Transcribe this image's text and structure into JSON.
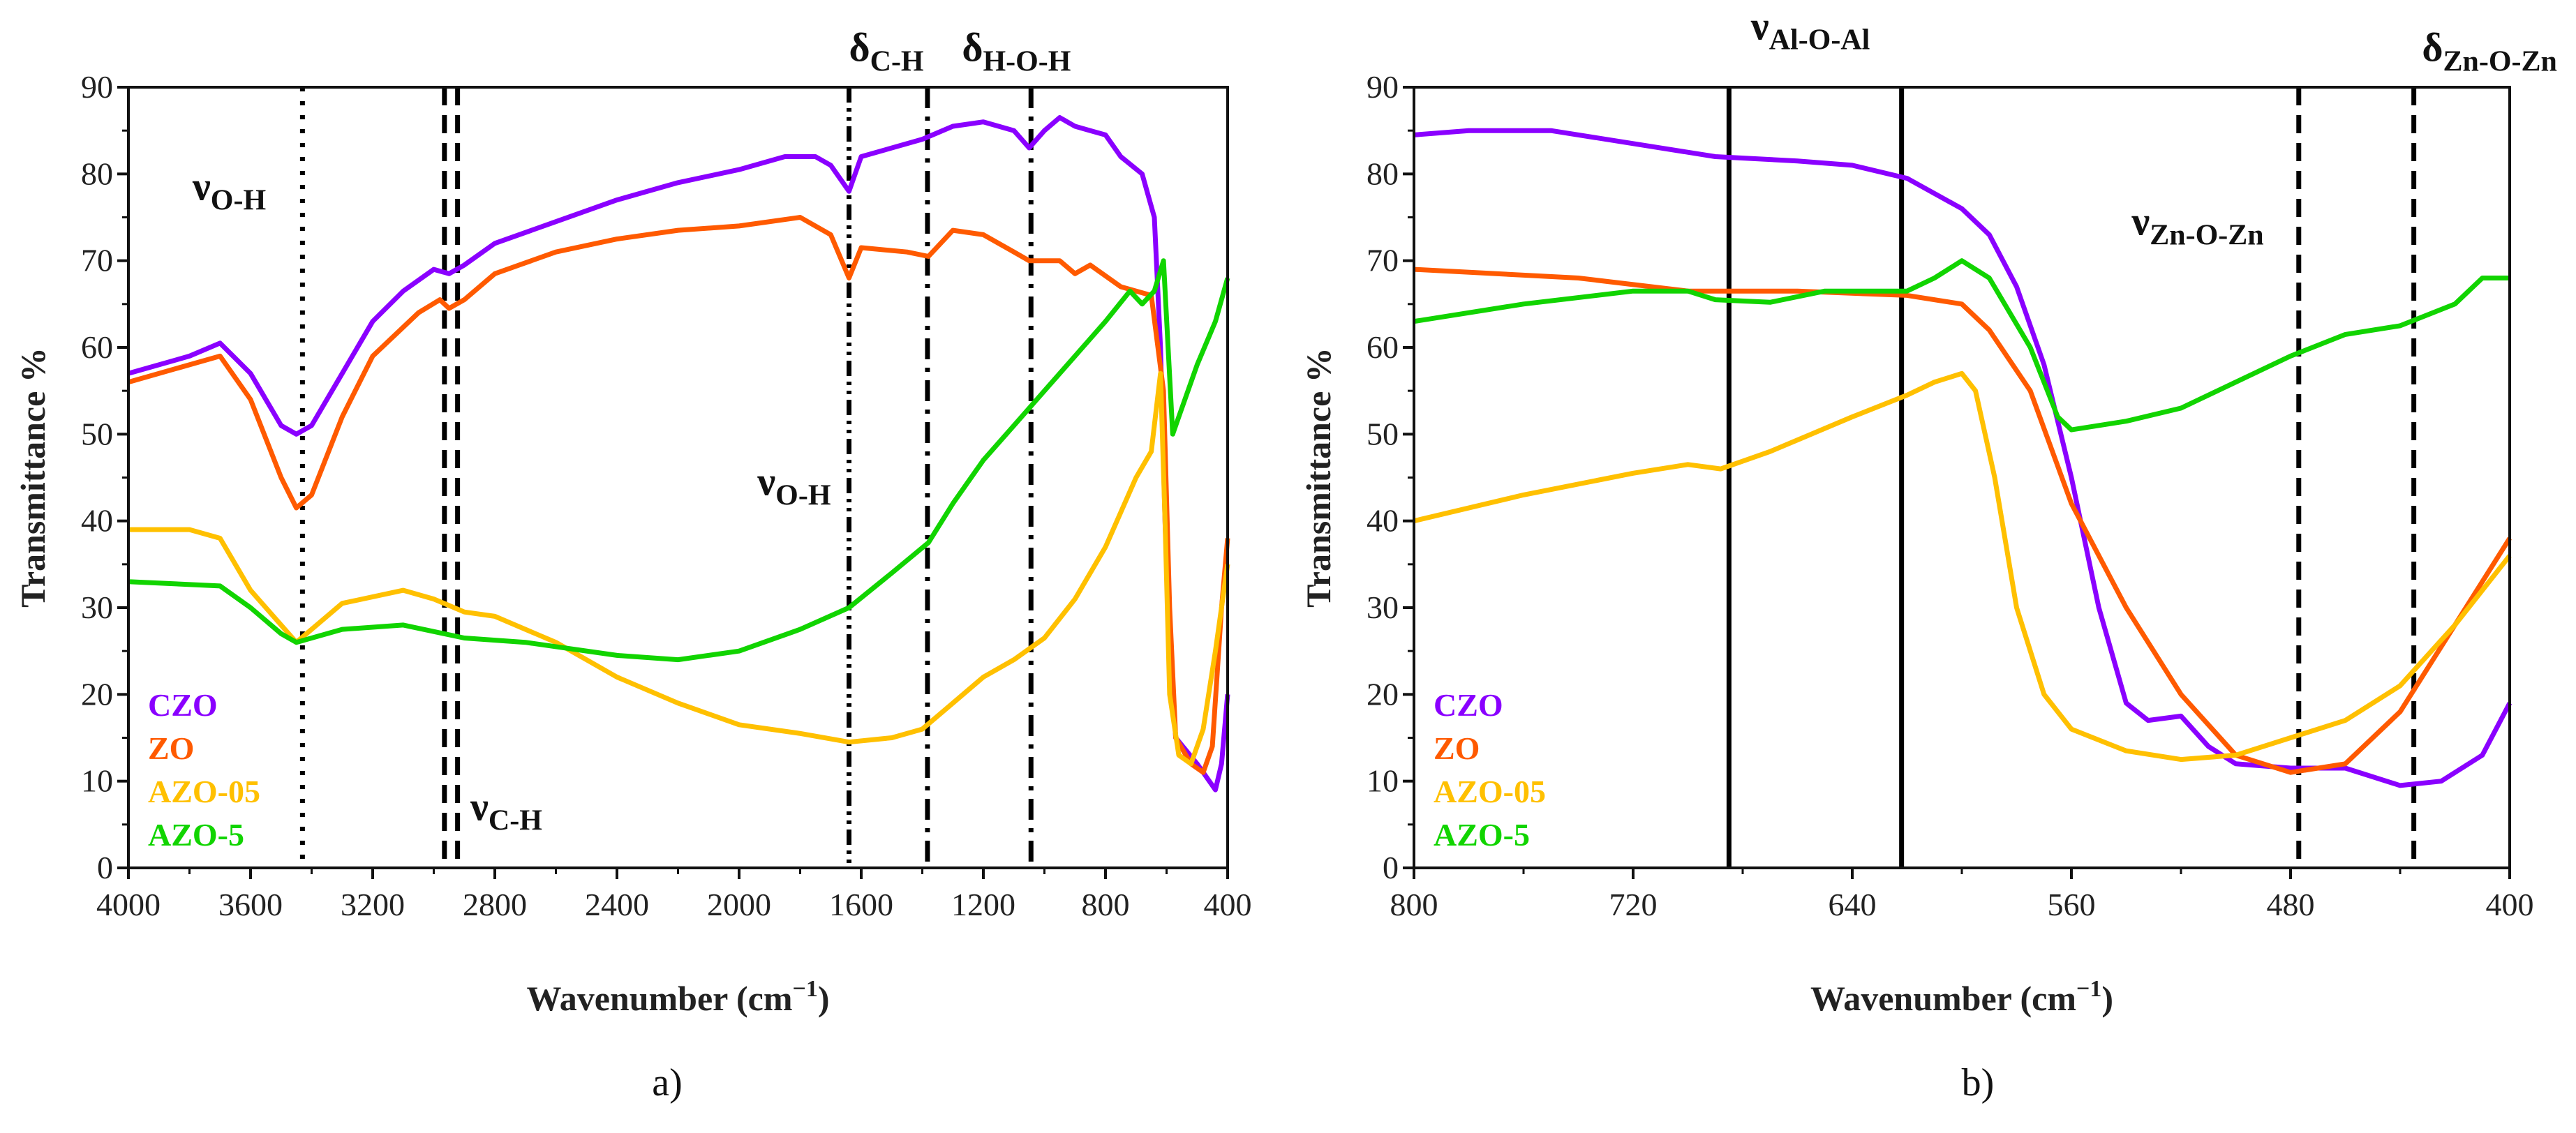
{
  "colors": {
    "CZO": "#8a00ff",
    "ZO": "#ff5a00",
    "AZO-05": "#ffc000",
    "AZO-5": "#11d400"
  },
  "chart_data": [
    {
      "type": "line",
      "panel_label": "a)",
      "xlabel": "Wavenumber (cm",
      "xlabel_sup": "−1",
      "xlabel_end": ")",
      "ylabel": "Transmittance %",
      "xlim": [
        4000,
        400
      ],
      "ylim": [
        0,
        90
      ],
      "xticks": [
        4000,
        3600,
        3200,
        2800,
        2400,
        2000,
        1600,
        1200,
        800,
        400
      ],
      "yticks": [
        0,
        10,
        20,
        30,
        40,
        50,
        60,
        70,
        80,
        90
      ],
      "legend": {
        "placement": "bottom-left",
        "entries": [
          "CZO",
          "ZO",
          "AZO-05",
          "AZO-5"
        ]
      },
      "vlines": [
        {
          "x": 3430,
          "style": "dotted"
        },
        {
          "x": 2965,
          "style": "dashed"
        },
        {
          "x": 2922,
          "style": "dashed"
        },
        {
          "x": 1640,
          "style": "dashdotdot"
        },
        {
          "x": 1383,
          "style": "dashdot"
        },
        {
          "x": 1044,
          "style": "dashdot"
        }
      ],
      "annotations": [
        {
          "symbol": "ν",
          "sub": "O-H",
          "x": 3790,
          "y": 77
        },
        {
          "symbol": "ν",
          "sub": "C-H",
          "x": 2880,
          "y": 5.5
        },
        {
          "symbol": "ν",
          "sub": "O-H",
          "x": 1940,
          "y": 43
        },
        {
          "symbol": "δ",
          "sub": "C-H",
          "x": 1640,
          "y": 93
        },
        {
          "symbol": "δ",
          "sub": "H-O-H",
          "x": 1270,
          "y": 93
        }
      ],
      "series": [
        {
          "name": "CZO",
          "x": [
            4000,
            3800,
            3700,
            3600,
            3500,
            3450,
            3400,
            3300,
            3200,
            3100,
            3000,
            2950,
            2900,
            2800,
            2600,
            2400,
            2200,
            2000,
            1850,
            1750,
            1700,
            1640,
            1600,
            1400,
            1300,
            1200,
            1100,
            1050,
            1000,
            950,
            900,
            850,
            800,
            750,
            680,
            640,
            620,
            605,
            590,
            570,
            500,
            440,
            420,
            400
          ],
          "y": [
            57,
            59,
            60.5,
            57,
            51,
            50,
            51,
            57,
            63,
            66.5,
            69,
            68.5,
            69.5,
            72,
            74.5,
            77,
            79,
            80.5,
            82,
            82,
            81,
            78,
            82,
            84,
            85.5,
            86,
            85,
            83,
            85,
            86.5,
            85.5,
            85,
            84.5,
            82,
            80,
            75,
            60,
            40,
            25,
            15,
            12,
            9,
            12,
            20
          ]
        },
        {
          "name": "ZO",
          "x": [
            4000,
            3700,
            3600,
            3500,
            3450,
            3400,
            3300,
            3200,
            3050,
            2980,
            2950,
            2900,
            2800,
            2600,
            2400,
            2200,
            2000,
            1800,
            1700,
            1640,
            1600,
            1450,
            1380,
            1300,
            1200,
            1100,
            1050,
            950,
            900,
            850,
            750,
            650,
            610,
            590,
            570,
            520,
            480,
            450,
            420,
            400
          ],
          "y": [
            56,
            59,
            54,
            45,
            41.5,
            43,
            52,
            59,
            64,
            65.5,
            64.5,
            65.5,
            68.5,
            71,
            72.5,
            73.5,
            74,
            75,
            73,
            68,
            71.5,
            71,
            70.5,
            73.5,
            73,
            71,
            70,
            70,
            68.5,
            69.5,
            67,
            66,
            55,
            30,
            15,
            12,
            11,
            14,
            30,
            38
          ]
        },
        {
          "name": "AZO-05",
          "x": [
            4000,
            3800,
            3700,
            3600,
            3500,
            3450,
            3400,
            3300,
            3100,
            3000,
            2900,
            2800,
            2600,
            2400,
            2200,
            2000,
            1800,
            1640,
            1500,
            1400,
            1300,
            1200,
            1100,
            1000,
            900,
            800,
            700,
            650,
            620,
            605,
            590,
            560,
            520,
            480,
            440,
            400
          ],
          "y": [
            39,
            39,
            38,
            32,
            28,
            26,
            27.5,
            30.5,
            32,
            31,
            29.5,
            29,
            26,
            22,
            19,
            16.5,
            15.5,
            14.5,
            15,
            16,
            19,
            22,
            24,
            26.5,
            31,
            37,
            45,
            48,
            57,
            40,
            20,
            13,
            12,
            16,
            25,
            35
          ]
        },
        {
          "name": "AZO-5",
          "x": [
            4000,
            3700,
            3600,
            3500,
            3450,
            3300,
            3100,
            2900,
            2700,
            2400,
            2200,
            2000,
            1800,
            1640,
            1500,
            1380,
            1300,
            1200,
            1100,
            1000,
            900,
            800,
            720,
            680,
            640,
            610,
            595,
            580,
            560,
            500,
            440,
            400
          ],
          "y": [
            33,
            32.5,
            30,
            27,
            26,
            27.5,
            28,
            26.5,
            26,
            24.5,
            24,
            25,
            27.5,
            30,
            34,
            37.5,
            42,
            47,
            51,
            55,
            59,
            63,
            66.5,
            65,
            66.5,
            70,
            60,
            50,
            52,
            58,
            63,
            68
          ]
        }
      ]
    },
    {
      "type": "line",
      "panel_label": "b)",
      "xlabel": "Wavenumber (cm",
      "xlabel_sup": "−1",
      "xlabel_end": ")",
      "ylabel": "Transmittance %",
      "xlim": [
        800,
        400
      ],
      "ylim": [
        0,
        90
      ],
      "xticks": [
        800,
        720,
        640,
        560,
        480,
        400
      ],
      "yticks": [
        0,
        10,
        20,
        30,
        40,
        50,
        60,
        70,
        80,
        90
      ],
      "legend": {
        "placement": "bottom-left",
        "entries": [
          "CZO",
          "ZO",
          "AZO-05",
          "AZO-5"
        ]
      },
      "vlines": [
        {
          "x": 685,
          "style": "solid"
        },
        {
          "x": 622,
          "style": "solid"
        },
        {
          "x": 477,
          "style": "dashed"
        },
        {
          "x": 435,
          "style": "dashed"
        }
      ],
      "annotations": [
        {
          "symbol": "ν",
          "sub": "Al-O-Al",
          "x": 677,
          "y": 95.5
        },
        {
          "symbol": "ν",
          "sub": "Zn-O-Zn",
          "x": 538,
          "y": 73
        },
        {
          "symbol": "δ",
          "sub": "Zn-O-Zn",
          "x": 432,
          "y": 93
        }
      ],
      "series": [
        {
          "name": "CZO",
          "x": [
            800,
            780,
            750,
            720,
            690,
            660,
            640,
            620,
            600,
            590,
            580,
            570,
            560,
            550,
            540,
            532,
            520,
            510,
            500,
            480,
            460,
            440,
            425,
            410,
            400
          ],
          "y": [
            84.5,
            85,
            85,
            83.5,
            82,
            81.5,
            81,
            79.5,
            76,
            73,
            67,
            58,
            45,
            30,
            19,
            17,
            17.5,
            14,
            12,
            11.5,
            11.5,
            9.5,
            10,
            13,
            19
          ]
        },
        {
          "name": "ZO",
          "x": [
            800,
            740,
            700,
            660,
            620,
            600,
            590,
            575,
            560,
            540,
            520,
            500,
            480,
            460,
            440,
            420,
            400
          ],
          "y": [
            69,
            68,
            66.5,
            66.5,
            66,
            65,
            62,
            55,
            42,
            30,
            20,
            13,
            11,
            12,
            18,
            28,
            38
          ]
        },
        {
          "name": "AZO-05",
          "x": [
            800,
            760,
            720,
            700,
            688,
            670,
            640,
            620,
            610,
            600,
            595,
            588,
            580,
            570,
            560,
            540,
            520,
            500,
            480,
            460,
            440,
            420,
            400
          ],
          "y": [
            40,
            43,
            45.5,
            46.5,
            46,
            48,
            52,
            54.5,
            56,
            57,
            55,
            45,
            30,
            20,
            16,
            13.5,
            12.5,
            13,
            15,
            17,
            21,
            28,
            36
          ]
        },
        {
          "name": "AZO-5",
          "x": [
            800,
            760,
            720,
            700,
            690,
            670,
            650,
            620,
            610,
            600,
            590,
            575,
            565,
            560,
            540,
            520,
            500,
            480,
            460,
            440,
            420,
            410,
            400
          ],
          "y": [
            63,
            65,
            66.5,
            66.5,
            65.5,
            65.2,
            66.5,
            66.5,
            68,
            70,
            68,
            60,
            52,
            50.5,
            51.5,
            53,
            56,
            59,
            61.5,
            62.5,
            65,
            68,
            68
          ]
        }
      ]
    }
  ]
}
